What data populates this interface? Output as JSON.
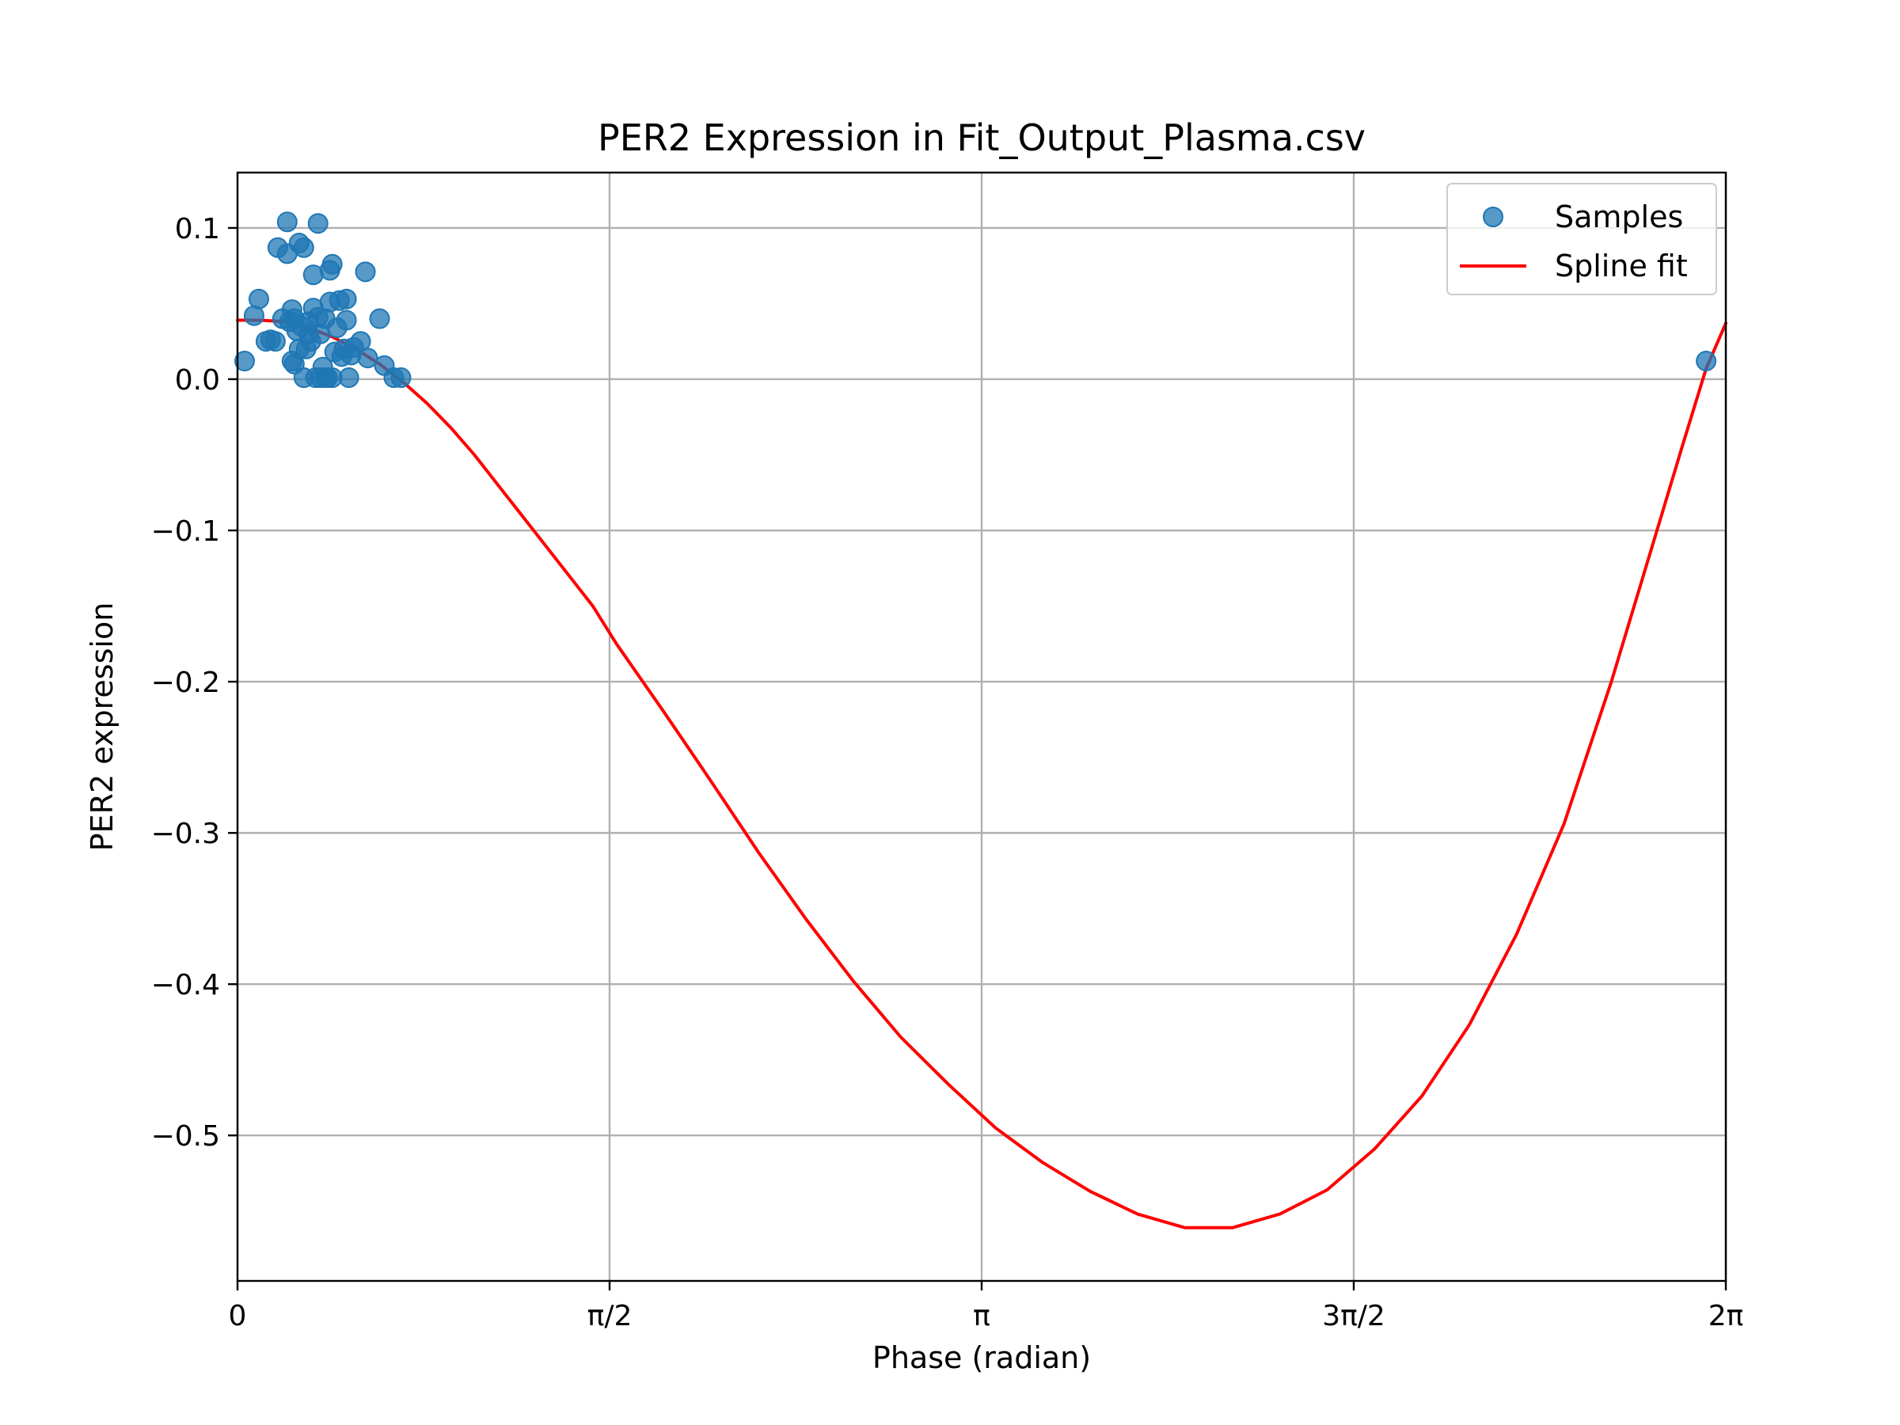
{
  "chart_data": {
    "type": "scatter",
    "title": "PER2 Expression in Fit_Output_Plasma.csv",
    "xlabel": "Phase (radian)",
    "ylabel": "PER2 expression",
    "xlim": [
      0,
      6.2832
    ],
    "ylim": [
      -0.5962,
      0.1366
    ],
    "grid": true,
    "legend_position": "top-right",
    "x_ticks": [
      {
        "value": 0,
        "label": "0"
      },
      {
        "value": 1.5708,
        "label": "π/2"
      },
      {
        "value": 3.1416,
        "label": "π"
      },
      {
        "value": 4.7124,
        "label": "3π/2"
      },
      {
        "value": 6.2832,
        "label": "2π"
      }
    ],
    "y_ticks": [
      {
        "value": 0.1,
        "label": "0.1"
      },
      {
        "value": 0.0,
        "label": "0.0"
      },
      {
        "value": -0.1,
        "label": "−0.1"
      },
      {
        "value": -0.2,
        "label": "−0.2"
      },
      {
        "value": -0.3,
        "label": "−0.3"
      },
      {
        "value": -0.4,
        "label": "−0.4"
      },
      {
        "value": -0.5,
        "label": "−0.5"
      }
    ],
    "series": [
      {
        "name": "Samples",
        "kind": "scatter",
        "color": "#1f77b4",
        "points": [
          [
            0.03,
            0.012
          ],
          [
            0.07,
            0.042
          ],
          [
            0.09,
            0.053
          ],
          [
            0.12,
            0.025
          ],
          [
            0.14,
            0.026
          ],
          [
            0.16,
            0.025
          ],
          [
            0.17,
            0.087
          ],
          [
            0.19,
            0.04
          ],
          [
            0.21,
            0.104
          ],
          [
            0.21,
            0.083
          ],
          [
            0.22,
            0.038
          ],
          [
            0.23,
            0.046
          ],
          [
            0.23,
            0.012
          ],
          [
            0.24,
            0.04
          ],
          [
            0.24,
            0.01
          ],
          [
            0.25,
            0.032
          ],
          [
            0.26,
            0.09
          ],
          [
            0.26,
            0.02
          ],
          [
            0.27,
            0.035
          ],
          [
            0.28,
            0.001
          ],
          [
            0.28,
            0.087
          ],
          [
            0.29,
            0.02
          ],
          [
            0.3,
            0.038
          ],
          [
            0.3,
            0.03
          ],
          [
            0.31,
            0.025
          ],
          [
            0.32,
            0.069
          ],
          [
            0.32,
            0.047
          ],
          [
            0.33,
            0.001
          ],
          [
            0.34,
            0.041
          ],
          [
            0.34,
            0.103
          ],
          [
            0.35,
            0.03
          ],
          [
            0.35,
            0.001
          ],
          [
            0.36,
            0.008
          ],
          [
            0.37,
            0.001
          ],
          [
            0.37,
            0.04
          ],
          [
            0.38,
            0.001
          ],
          [
            0.39,
            0.072
          ],
          [
            0.39,
            0.051
          ],
          [
            0.4,
            0.076
          ],
          [
            0.4,
            0.001
          ],
          [
            0.41,
            0.018
          ],
          [
            0.42,
            0.034
          ],
          [
            0.43,
            0.052
          ],
          [
            0.44,
            0.015
          ],
          [
            0.45,
            0.02
          ],
          [
            0.46,
            0.039
          ],
          [
            0.46,
            0.053
          ],
          [
            0.47,
            0.001
          ],
          [
            0.48,
            0.016
          ],
          [
            0.49,
            0.021
          ],
          [
            0.52,
            0.025
          ],
          [
            0.54,
            0.071
          ],
          [
            0.55,
            0.014
          ],
          [
            0.6,
            0.04
          ],
          [
            0.62,
            0.009
          ],
          [
            0.66,
            0.001
          ],
          [
            0.69,
            0.001
          ],
          [
            6.2,
            0.012
          ]
        ]
      },
      {
        "name": "Spline fit",
        "kind": "line",
        "color": "#ff0000",
        "points": [
          [
            0.0,
            0.039
          ],
          [
            0.1,
            0.039
          ],
          [
            0.2,
            0.038
          ],
          [
            0.3,
            0.034
          ],
          [
            0.4,
            0.028
          ],
          [
            0.5,
            0.02
          ],
          [
            0.6,
            0.01
          ],
          [
            0.7,
            -0.002
          ],
          [
            0.8,
            -0.016
          ],
          [
            0.9,
            -0.032
          ],
          [
            1.0,
            -0.05
          ],
          [
            1.1,
            -0.07
          ],
          [
            1.2,
            -0.09
          ],
          [
            1.3,
            -0.11
          ],
          [
            1.4,
            -0.13
          ],
          [
            1.5,
            -0.15
          ],
          [
            1.6,
            -0.175
          ],
          [
            1.8,
            -0.22
          ],
          [
            2.0,
            -0.266
          ],
          [
            2.2,
            -0.313
          ],
          [
            2.4,
            -0.357
          ],
          [
            2.6,
            -0.398
          ],
          [
            2.8,
            -0.435
          ],
          [
            3.0,
            -0.466
          ],
          [
            3.2,
            -0.495
          ],
          [
            3.4,
            -0.518
          ],
          [
            3.6,
            -0.537
          ],
          [
            3.8,
            -0.552
          ],
          [
            4.0,
            -0.561
          ],
          [
            4.2,
            -0.561
          ],
          [
            4.4,
            -0.552
          ],
          [
            4.6,
            -0.536
          ],
          [
            4.8,
            -0.509
          ],
          [
            5.0,
            -0.474
          ],
          [
            5.2,
            -0.427
          ],
          [
            5.4,
            -0.367
          ],
          [
            5.6,
            -0.294
          ],
          [
            5.8,
            -0.2
          ],
          [
            6.0,
            -0.096
          ],
          [
            6.1,
            -0.044
          ],
          [
            6.2,
            0.007
          ],
          [
            6.2832,
            0.037
          ]
        ]
      }
    ]
  }
}
